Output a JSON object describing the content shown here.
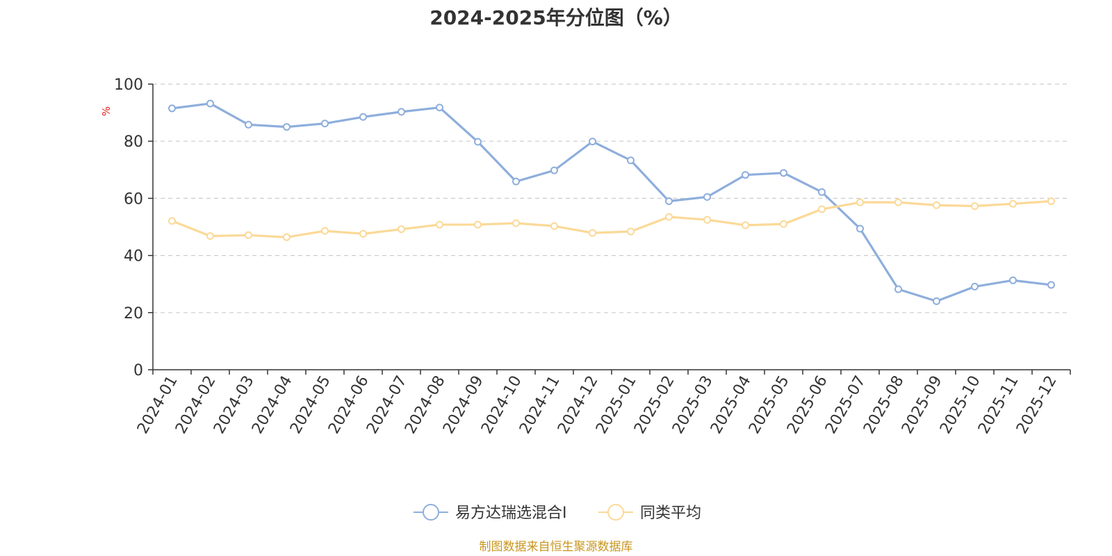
{
  "chart_data": {
    "type": "line",
    "title": "2024-2025年分位图（%）",
    "ylabel": "%",
    "ylim": [
      0,
      100
    ],
    "yticks": [
      "0",
      "20",
      "40",
      "60",
      "80",
      "100"
    ],
    "categories": [
      "2024-01",
      "2024-02",
      "2024-03",
      "2024-04",
      "2024-05",
      "2024-06",
      "2024-07",
      "2024-08",
      "2024-09",
      "2024-10",
      "2024-11",
      "2024-12",
      "2025-01",
      "2025-02",
      "2025-03",
      "2025-04",
      "2025-05",
      "2025-06",
      "2025-07",
      "2025-08",
      "2025-09",
      "2025-10",
      "2025-11",
      "2025-12"
    ],
    "series": [
      {
        "name": "易方达瑞选混合I",
        "color": "#8eaedc",
        "values": [
          91.5,
          93.2,
          85.8,
          85.0,
          86.2,
          88.5,
          90.3,
          91.8,
          79.8,
          65.9,
          69.8,
          79.9,
          73.3,
          59.0,
          60.5,
          68.2,
          68.9,
          62.2,
          49.4,
          28.2,
          24.0,
          29.1,
          31.3,
          29.7
        ]
      },
      {
        "name": "同类平均",
        "color": "#fbd997",
        "values": [
          52.1,
          46.8,
          47.1,
          46.4,
          48.6,
          47.6,
          49.2,
          50.8,
          50.8,
          51.3,
          50.3,
          47.9,
          48.4,
          53.5,
          52.5,
          50.6,
          51.0,
          56.2,
          58.6,
          58.6,
          57.6,
          57.3,
          58.1,
          59.0
        ]
      }
    ],
    "grid": true,
    "legend_position": "bottom"
  },
  "source_text": "制图数据来自恒生聚源数据库"
}
